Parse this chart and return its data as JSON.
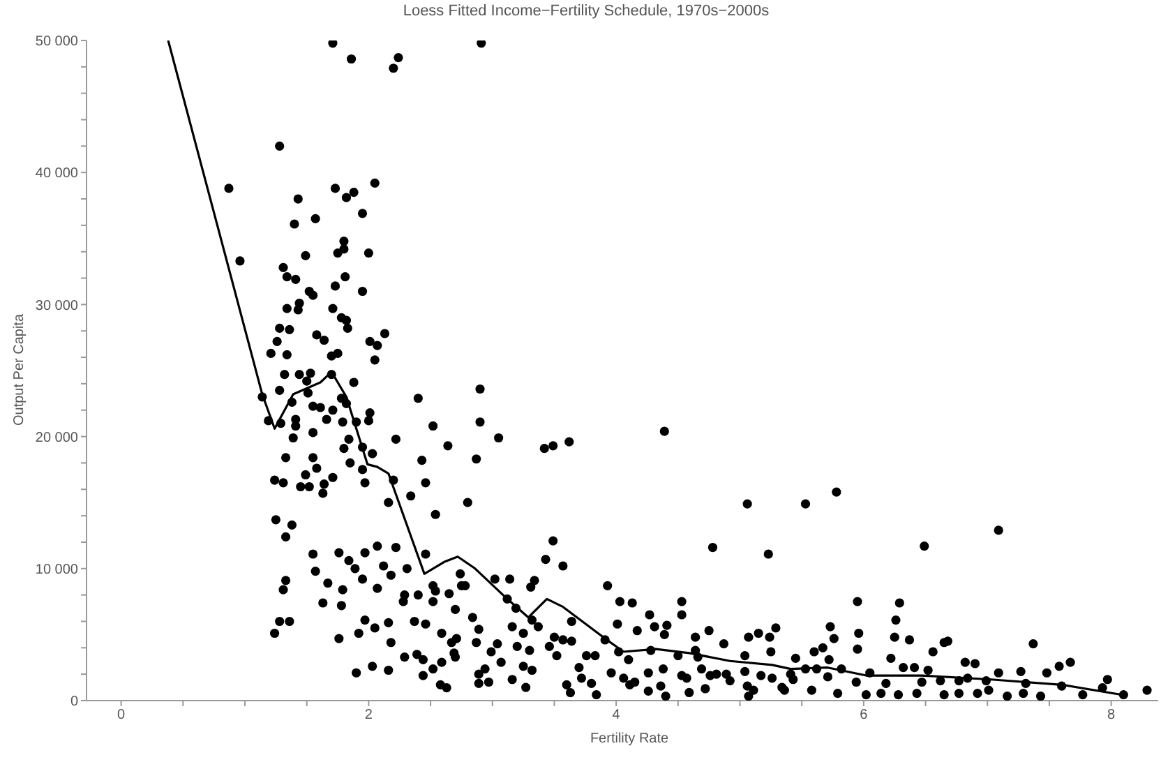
{
  "chart_data": {
    "type": "scatter",
    "title": "Loess Fitted Income−Fertility Schedule, 1970s−2000s",
    "xlabel": "Fertility Rate",
    "ylabel": "Output Per Capita",
    "xlim": [
      -0.28,
      8.38
    ],
    "ylim": [
      0,
      50000
    ],
    "xticks": [
      0,
      {
        "value": 0.5,
        "label": null
      },
      {
        "value": 1,
        "label": null
      },
      {
        "value": 1.5,
        "label": null
      },
      2,
      {
        "value": 2.5,
        "label": null
      },
      {
        "value": 3,
        "label": null
      },
      {
        "value": 3.5,
        "label": null
      },
      4,
      {
        "value": 4.5,
        "label": null
      },
      {
        "value": 5,
        "label": null
      },
      {
        "value": 5.5,
        "label": null
      },
      6,
      {
        "value": 6.5,
        "label": null
      },
      {
        "value": 7,
        "label": null
      },
      {
        "value": 7.5,
        "label": null
      },
      8
    ],
    "yticks": [
      0,
      {
        "value": 2000,
        "label": null
      },
      {
        "value": 4000,
        "label": null
      },
      {
        "value": 6000,
        "label": null
      },
      {
        "value": 8000,
        "label": null
      },
      {
        "value": 10000,
        "label": "10 000"
      },
      {
        "value": 12000,
        "label": null
      },
      {
        "value": 14000,
        "label": null
      },
      {
        "value": 16000,
        "label": null
      },
      {
        "value": 18000,
        "label": null
      },
      {
        "value": 20000,
        "label": "20 000"
      },
      {
        "value": 22000,
        "label": null
      },
      {
        "value": 24000,
        "label": null
      },
      {
        "value": 26000,
        "label": null
      },
      {
        "value": 28000,
        "label": null
      },
      {
        "value": 30000,
        "label": "30 000"
      },
      {
        "value": 32000,
        "label": null
      },
      {
        "value": 34000,
        "label": null
      },
      {
        "value": 36000,
        "label": null
      },
      {
        "value": 38000,
        "label": null
      },
      {
        "value": 40000,
        "label": "40 000"
      },
      {
        "value": 42000,
        "label": null
      },
      {
        "value": 44000,
        "label": null
      },
      {
        "value": 46000,
        "label": null
      },
      {
        "value": 48000,
        "label": null
      },
      {
        "value": 50000,
        "label": "50 000"
      }
    ],
    "grid": false,
    "legend": false,
    "series": [
      {
        "color": "#000000",
        "marker": "circle",
        "x": [
          1.71,
          1.86,
          2.2,
          2.24,
          1.28,
          0.87,
          1.73,
          2.05,
          1.82,
          1.88,
          1.43,
          1.95,
          1.4,
          1.57,
          1.8,
          1.8,
          1.75,
          2.0,
          1.49,
          0.96,
          1.31,
          1.34,
          1.41,
          1.81,
          1.73,
          1.52,
          1.55,
          1.95,
          1.34,
          1.44,
          1.43,
          1.71,
          1.78,
          1.82,
          1.83,
          1.28,
          1.36,
          1.58,
          1.64,
          2.13,
          2.01,
          2.07,
          1.26,
          1.21,
          1.34,
          1.7,
          1.75,
          2.05,
          1.32,
          1.44,
          1.53,
          1.7,
          1.14,
          1.19,
          1.29,
          1.28,
          1.5,
          1.51,
          1.38,
          1.55,
          1.61,
          1.71,
          1.41,
          1.41,
          1.39,
          1.55,
          1.66,
          1.78,
          1.82,
          1.88,
          1.79,
          1.9,
          2.0,
          2.01,
          1.84,
          1.8,
          1.95,
          2.03,
          1.85,
          1.95,
          1.97,
          2.22,
          2.4,
          2.52,
          2.64,
          2.43,
          2.2,
          2.34,
          2.46,
          2.54,
          2.8,
          2.16,
          1.55,
          1.58,
          1.49,
          1.45,
          1.52,
          1.64,
          1.63,
          1.71,
          1.24,
          1.31,
          1.33,
          1.25,
          1.38,
          1.33,
          1.55,
          1.57,
          1.76,
          1.84,
          1.89,
          1.97,
          2.07,
          2.12,
          2.22,
          2.31,
          2.46,
          1.67,
          1.95,
          2.07,
          2.18,
          2.29,
          2.4,
          2.52,
          1.33,
          1.31,
          1.63,
          1.79,
          1.78,
          2.28,
          2.52,
          1.28,
          1.36,
          1.24,
          1.76,
          1.92,
          1.97,
          2.05,
          2.16,
          2.18,
          2.37,
          2.46,
          2.59,
          2.29,
          2.39,
          2.44,
          2.52,
          2.59,
          1.9,
          2.03,
          2.16,
          2.44,
          2.58,
          2.63,
          2.69,
          2.71,
          2.74,
          2.75,
          2.78,
          2.7,
          2.54,
          2.65,
          2.9,
          2.9,
          3.05,
          2.87,
          3.42,
          3.49,
          3.62,
          4.39,
          3.49,
          3.43,
          3.57,
          3.93,
          4.03,
          4.13,
          4.53,
          4.53,
          4.27,
          4.01,
          4.17,
          4.31,
          4.41,
          4.39,
          4.75,
          5.07,
          5.15,
          4.78,
          5.06,
          5.23,
          5.53,
          3.02,
          3.14,
          3.12,
          3.19,
          3.31,
          3.34,
          3.32,
          3.16,
          2.84,
          2.89,
          2.87,
          2.67,
          2.7,
          3.04,
          2.99,
          3.07,
          3.2,
          3.25,
          3.3,
          3.25,
          3.32,
          3.27,
          3.16,
          2.89,
          2.94,
          2.97,
          2.89,
          3.37,
          3.5,
          3.57,
          3.46,
          3.52,
          3.64,
          3.64,
          3.6,
          3.63,
          3.7,
          3.76,
          3.83,
          3.72,
          3.8,
          3.84,
          3.91,
          3.96,
          4.02,
          4.06,
          4.11,
          4.15,
          4.1,
          4.26,
          4.26,
          4.36,
          4.4,
          4.38,
          4.28,
          4.5,
          4.53,
          4.57,
          4.59,
          4.64,
          4.64,
          4.66,
          4.69,
          4.76,
          4.72,
          4.81,
          4.87,
          4.89,
          4.92,
          5.04,
          5.04,
          5.06,
          5.11,
          5.07,
          5.17,
          5.24,
          5.29,
          5.25,
          5.26,
          5.34,
          5.41,
          5.45,
          2.91,
          5.78,
          7.09,
          6.49,
          5.95,
          6.29,
          6.26,
          5.73,
          5.76,
          5.96,
          5.95,
          6.25,
          6.37,
          5.6,
          5.67,
          5.72,
          6.22,
          6.56,
          6.65,
          6.68,
          6.82,
          6.9,
          7.37,
          7.67,
          7.58,
          7.48,
          7.27,
          7.09,
          6.32,
          6.41,
          6.52,
          6.05,
          5.82,
          5.62,
          5.53,
          5.43,
          5.71,
          5.94,
          6.18,
          6.47,
          6.62,
          6.77,
          6.84,
          6.99,
          7.31,
          7.6,
          7.97,
          7.93,
          8.1,
          8.29,
          7.77,
          7.43,
          7.29,
          7.16,
          6.92,
          6.65,
          6.43,
          6.28,
          6.02,
          5.79,
          5.58,
          5.36,
          6.14,
          6.77,
          7.01
        ],
        "values": [
          49800,
          48600,
          47900,
          48700,
          42000,
          38800,
          38800,
          39200,
          38100,
          38500,
          38000,
          36900,
          36100,
          36500,
          34800,
          34200,
          33900,
          33900,
          33700,
          33300,
          32800,
          32100,
          31900,
          32100,
          31400,
          31000,
          30700,
          31000,
          29700,
          30100,
          29600,
          29700,
          29000,
          28800,
          28200,
          28200,
          28100,
          27700,
          27300,
          27800,
          27200,
          26900,
          27200,
          26300,
          26200,
          26100,
          26300,
          25800,
          24700,
          24700,
          24800,
          24700,
          23000,
          21200,
          21000,
          23500,
          24200,
          23300,
          22600,
          22300,
          22200,
          22000,
          21300,
          20800,
          19900,
          20300,
          21300,
          22900,
          22500,
          24100,
          21100,
          21100,
          21200,
          21800,
          19800,
          19100,
          19200,
          18700,
          18000,
          17500,
          16500,
          19800,
          22900,
          20800,
          19300,
          18200,
          16700,
          15500,
          16500,
          14100,
          15000,
          15000,
          18400,
          17600,
          17100,
          16200,
          16200,
          16400,
          15700,
          16900,
          16700,
          16500,
          18400,
          13700,
          13300,
          12400,
          11100,
          9800,
          11200,
          10600,
          10000,
          11200,
          11700,
          10200,
          11600,
          10000,
          11100,
          8900,
          9200,
          8500,
          9500,
          8000,
          8000,
          8700,
          9100,
          8400,
          7400,
          8400,
          7200,
          7500,
          7500,
          6000,
          6000,
          5100,
          4700,
          5100,
          6100,
          5500,
          5900,
          4400,
          6000,
          5800,
          5100,
          3300,
          3500,
          3100,
          2400,
          2900,
          2100,
          2600,
          2300,
          1900,
          1200,
          970,
          3600,
          4700,
          9600,
          8700,
          8700,
          6900,
          8300,
          8100,
          23600,
          21100,
          19900,
          18300,
          19100,
          19300,
          19600,
          20400,
          12100,
          10700,
          10200,
          8700,
          7500,
          7400,
          7500,
          6500,
          6500,
          5800,
          5300,
          5600,
          5700,
          5000,
          5300,
          4800,
          5100,
          11600,
          14900,
          11100,
          14900,
          9200,
          9200,
          7700,
          7000,
          8600,
          9100,
          6100,
          5600,
          6300,
          5400,
          4400,
          4400,
          3300,
          4300,
          3700,
          2900,
          4100,
          5100,
          3800,
          2600,
          2300,
          1000,
          1600,
          2000,
          2400,
          1400,
          1300,
          5600,
          4800,
          4600,
          4100,
          3400,
          6000,
          4500,
          1200,
          600,
          2500,
          3400,
          3400,
          1700,
          1300,
          440,
          4600,
          2100,
          3700,
          1700,
          1200,
          1400,
          3100,
          2100,
          720,
          1100,
          340,
          2400,
          3800,
          3400,
          1900,
          1700,
          610,
          4800,
          3800,
          3300,
          2400,
          1900,
          900,
          2000,
          4300,
          2000,
          1500,
          3400,
          2200,
          1100,
          790,
          340,
          1900,
          4800,
          5500,
          3700,
          1700,
          1000,
          2000,
          3200,
          49800,
          15800,
          12900,
          11700,
          7500,
          7400,
          6100,
          5600,
          4700,
          5100,
          3900,
          4800,
          4600,
          3700,
          4000,
          3100,
          3200,
          3700,
          4400,
          4500,
          2900,
          2800,
          4300,
          2900,
          2600,
          2100,
          2200,
          2100,
          2500,
          2500,
          2300,
          2100,
          2400,
          2400,
          2400,
          1600,
          1800,
          1400,
          1300,
          1400,
          1500,
          1500,
          1700,
          1500,
          1300,
          1100,
          1600,
          970,
          440,
          790,
          440,
          340,
          550,
          340,
          550,
          440,
          550,
          440,
          440,
          550,
          790,
          790,
          550,
          550,
          790
        ]
      },
      {
        "type": "line",
        "color": "#000000",
        "marker": "none",
        "line_style": "solid",
        "x": [
          0.38,
          1.14,
          1.24,
          1.39,
          1.61,
          1.7,
          1.75,
          1.82,
          1.99,
          2.07,
          2.16,
          2.45,
          2.61,
          2.72,
          2.86,
          3.12,
          3.29,
          3.44,
          3.57,
          3.91,
          4.06,
          4.32,
          4.59,
          4.92,
          5.26,
          5.41,
          5.71,
          6.02,
          6.47,
          7.03,
          7.6,
          8.08
        ],
        "values": [
          50000,
          23200,
          20600,
          23200,
          24100,
          24900,
          24100,
          23000,
          17900,
          17700,
          17200,
          9600,
          10500,
          10900,
          10000,
          7700,
          6300,
          7700,
          7100,
          4700,
          3700,
          3900,
          3600,
          3000,
          2700,
          2400,
          2500,
          1900,
          1900,
          1600,
          1200,
          450
        ]
      }
    ]
  }
}
